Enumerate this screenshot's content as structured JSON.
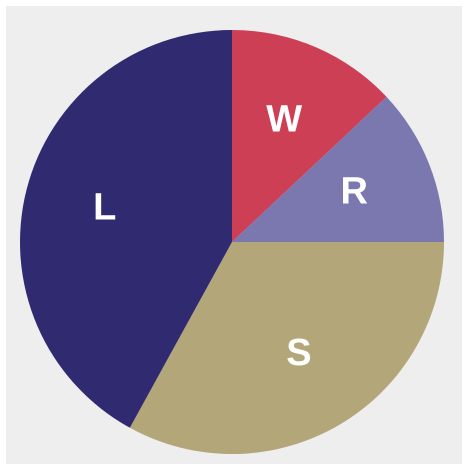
{
  "chart_data": {
    "type": "pie",
    "categories": [
      "W",
      "R",
      "S",
      "L"
    ],
    "values": [
      13,
      12,
      33,
      42
    ],
    "colors": [
      "#cc3f55",
      "#7b78b0",
      "#b3a679",
      "#302a70"
    ]
  }
}
